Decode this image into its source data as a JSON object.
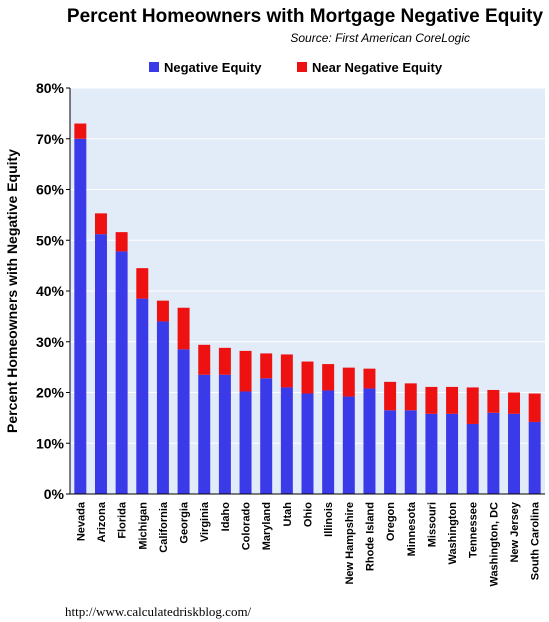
{
  "colors": {
    "negative": "#3a3ae8",
    "near_negative": "#ee1111",
    "plot_bg": "#e2ecf8",
    "grid": "#ffffff"
  },
  "footer": "http://www.calculatedriskblog.com/",
  "chart_data": {
    "type": "bar",
    "stacked": true,
    "title": "Percent Homeowners with Mortgage Negative Equity",
    "subtitle": "Source: First American CoreLogic",
    "xlabel": "",
    "ylabel": "Percent Homeowners with Negative Equity",
    "ylim": [
      0,
      80
    ],
    "yticks": [
      "0%",
      "10%",
      "20%",
      "30%",
      "40%",
      "50%",
      "60%",
      "70%",
      "80%"
    ],
    "legend_position": "top",
    "grid": false,
    "categories": [
      "Nevada",
      "Arizona",
      "Florida",
      "Michigan",
      "California",
      "Georgia",
      "Virginia",
      "Idaho",
      "Colorado",
      "Maryland",
      "Utah",
      "Ohio",
      "Illinois",
      "New Hampshire",
      "Rhode Island",
      "Oregon",
      "Minnesota",
      "Missouri",
      "Washington",
      "Tennessee",
      "Washington, DC",
      "New Jersey",
      "South Carolina"
    ],
    "series": [
      {
        "name": "Negative Equity",
        "values": [
          70,
          51.2,
          47.8,
          38.5,
          34,
          28.5,
          23.5,
          23.5,
          20.2,
          22.8,
          21,
          19.8,
          20.4,
          19.2,
          20.8,
          16.5,
          16.5,
          15.8,
          15.8,
          13.8,
          16,
          15.8,
          14.2
        ]
      },
      {
        "name": "Near Negative Equity",
        "values": [
          3,
          4.1,
          3.8,
          6,
          4.1,
          8.2,
          5.9,
          5.3,
          8,
          4.9,
          6.5,
          6.3,
          5.2,
          5.7,
          3.9,
          5.6,
          5.3,
          5.3,
          5.3,
          7.2,
          4.5,
          4.2,
          5.6
        ]
      }
    ]
  }
}
